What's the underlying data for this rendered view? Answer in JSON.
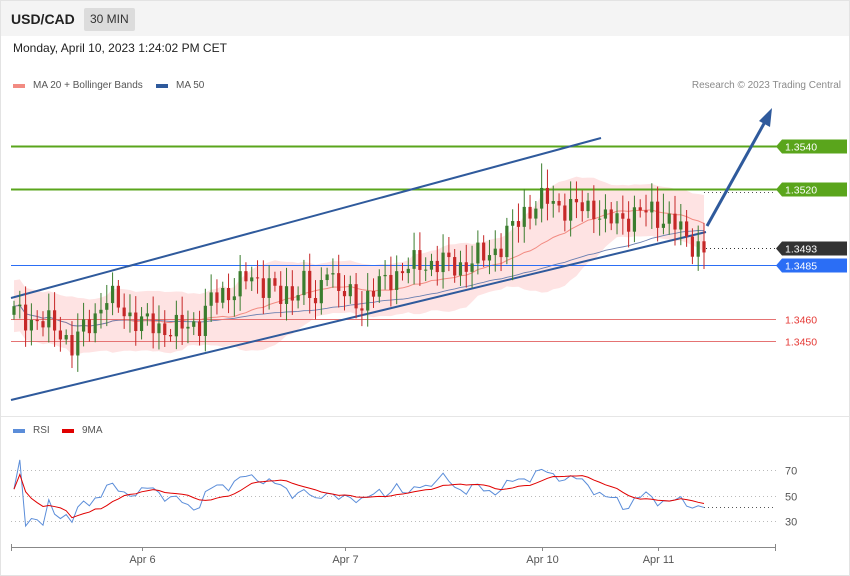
{
  "header": {
    "symbol": "USD/CAD",
    "timeframe": "30 MIN"
  },
  "date": "Monday, April 10, 2023 1:24:02 PM CET",
  "copyright": "Research © 2023 Trading Central",
  "legend": {
    "main": [
      {
        "label": "MA 20 + Bollinger Bands",
        "color": "#f28b82"
      },
      {
        "label": "MA 50",
        "color": "#2f5a9c"
      }
    ],
    "rsi": [
      {
        "label": "RSI",
        "color": "#5b8dd9"
      },
      {
        "label": "9MA",
        "color": "#e00000"
      }
    ]
  },
  "colors": {
    "bull": "#3a7d2e",
    "bear": "#c62828",
    "resistance": "#5aa51c",
    "support": "#e57373",
    "current": "#333333",
    "pivot": "#2b6ef5",
    "channel": "#2f5a9c",
    "band": "#fdd9d9"
  },
  "chart_data": [
    {
      "type": "candlestick",
      "y_range": [
        1.3418,
        1.3565
      ],
      "x_ticks": [
        "Apr 6",
        "Apr 7",
        "Apr 10",
        "Apr 11"
      ],
      "levels": [
        {
          "value": 1.354,
          "label": "1.3540",
          "kind": "resistance"
        },
        {
          "value": 1.352,
          "label": "1.3520",
          "kind": "resistance"
        },
        {
          "value": 1.3493,
          "label": "1.3493",
          "kind": "current"
        },
        {
          "value": 1.3485,
          "label": "1.3485",
          "kind": "pivot"
        },
        {
          "value": 1.346,
          "label": "1.3460",
          "kind": "support"
        },
        {
          "value": 1.345,
          "label": "1.3450",
          "kind": "support"
        }
      ],
      "series": [
        "MA 20 + Bollinger Bands",
        "MA 50"
      ],
      "annotations": [
        "ascending channel",
        "target arrow to 1.3540"
      ]
    },
    {
      "type": "line",
      "title": "RSI",
      "y_ticks": [
        70,
        50,
        30
      ],
      "series": [
        "RSI",
        "9MA"
      ]
    }
  ]
}
